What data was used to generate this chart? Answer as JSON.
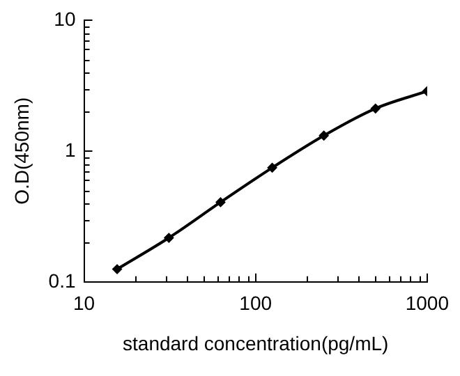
{
  "chart_data": {
    "type": "line",
    "xlabel": "standard concentration(pg/mL)",
    "ylabel": "O.D(450nm)",
    "log": "xy",
    "x": [
      15.6,
      31.25,
      62.5,
      125,
      250,
      500,
      1000
    ],
    "series": [
      {
        "color": "#000000",
        "values": [
          0.125,
          0.217,
          0.406,
          0.745,
          1.31,
          2.11,
          2.86
        ]
      }
    ],
    "xlim": [
      10,
      1000
    ],
    "ylim": [
      0.1,
      10
    ],
    "xticks": [
      10,
      {
        "value": 20,
        "label": null
      },
      {
        "value": 30,
        "label": null
      },
      {
        "value": 40,
        "label": null
      },
      {
        "value": 50,
        "label": null
      },
      {
        "value": 60,
        "label": null
      },
      {
        "value": 70,
        "label": null
      },
      {
        "value": 80,
        "label": null
      },
      {
        "value": 90,
        "label": null
      },
      100,
      {
        "value": 200,
        "label": null
      },
      {
        "value": 300,
        "label": null
      },
      {
        "value": 400,
        "label": null
      },
      {
        "value": 500,
        "label": null
      },
      {
        "value": 600,
        "label": null
      },
      {
        "value": 700,
        "label": null
      },
      {
        "value": 800,
        "label": null
      },
      {
        "value": 900,
        "label": null
      },
      1000
    ],
    "yticks": [
      0.1,
      {
        "value": 0.2,
        "label": null
      },
      {
        "value": 0.3,
        "label": null
      },
      {
        "value": 0.4,
        "label": null
      },
      {
        "value": 0.5,
        "label": null
      },
      {
        "value": 0.6,
        "label": null
      },
      {
        "value": 0.7,
        "label": null
      },
      {
        "value": 0.8,
        "label": null
      },
      {
        "value": 0.9,
        "label": null
      },
      1,
      {
        "value": 2,
        "label": null
      },
      {
        "value": 3,
        "label": null
      },
      {
        "value": 4,
        "label": null
      },
      {
        "value": 5,
        "label": null
      },
      {
        "value": 6,
        "label": null
      },
      {
        "value": 7,
        "label": null
      },
      {
        "value": 8,
        "label": null
      },
      {
        "value": 9,
        "label": null
      },
      10
    ],
    "grid": false,
    "legend": false,
    "marker": "diamond",
    "line_style": "solid"
  }
}
